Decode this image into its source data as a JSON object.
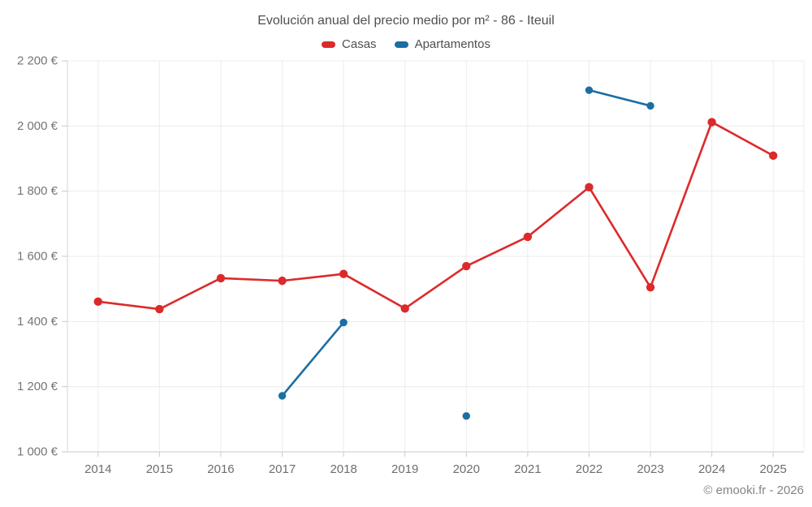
{
  "chart_data": {
    "type": "line",
    "title": "Evolución anual del precio medio por m² - 86 - Iteuil",
    "xlabel": "",
    "ylabel": "",
    "categories": [
      "2014",
      "2015",
      "2016",
      "2017",
      "2018",
      "2019",
      "2020",
      "2021",
      "2022",
      "2023",
      "2024",
      "2025"
    ],
    "series": [
      {
        "name": "Casas",
        "color": "#dc2a2b",
        "values": [
          1461,
          1438,
          1533,
          1525,
          1546,
          1440,
          1570,
          1660,
          1812,
          1505,
          2012,
          1909
        ]
      },
      {
        "name": "Apartamentos",
        "color": "#1c6ea4",
        "values": [
          null,
          null,
          null,
          1172,
          1397,
          null,
          1110,
          null,
          2110,
          2062,
          null,
          null
        ]
      }
    ],
    "ylim": [
      1000,
      2200
    ],
    "y_ticks": [
      {
        "value": 1000,
        "label": "1 000 €"
      },
      {
        "value": 1200,
        "label": "1 200 €"
      },
      {
        "value": 1400,
        "label": "1 400 €"
      },
      {
        "value": 1600,
        "label": "1 600 €"
      },
      {
        "value": 1800,
        "label": "1 800 €"
      },
      {
        "value": 2000,
        "label": "2 000 €"
      },
      {
        "value": 2200,
        "label": "2 200 €"
      }
    ],
    "grid": true,
    "legend_position": "top",
    "watermark": "© emooki.fr - 2026"
  }
}
